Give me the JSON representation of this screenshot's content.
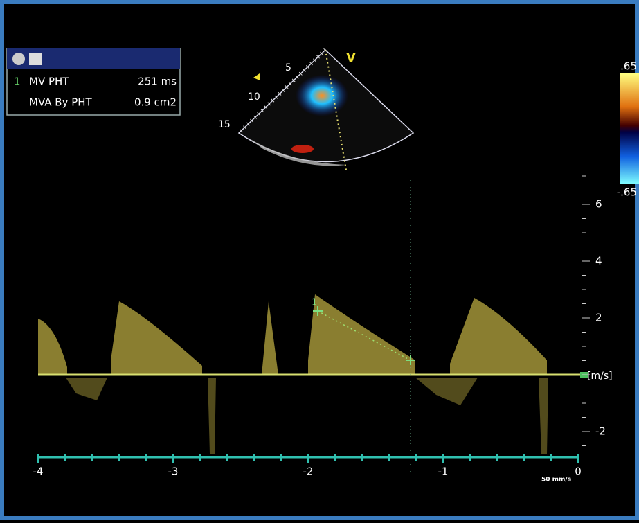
{
  "measurements": {
    "index": "1",
    "rows": [
      {
        "label": "MV PHT",
        "value": "251 ms"
      },
      {
        "label": "MVA By PHT",
        "value": "0.9 cm2"
      }
    ]
  },
  "sector": {
    "depth_labels": [
      "5",
      "10",
      "15"
    ],
    "mode_label": "V"
  },
  "color_scale": {
    "top": ".65",
    "bottom": "-.65"
  },
  "velocity_axis": {
    "unit": "[m/s]",
    "ticks": [
      6,
      4,
      2,
      -2
    ]
  },
  "time_axis": {
    "ticks": [
      -4,
      -3,
      -2,
      -1,
      0
    ]
  },
  "sweep_speed": "50 mm/s",
  "marker_label": "1"
}
